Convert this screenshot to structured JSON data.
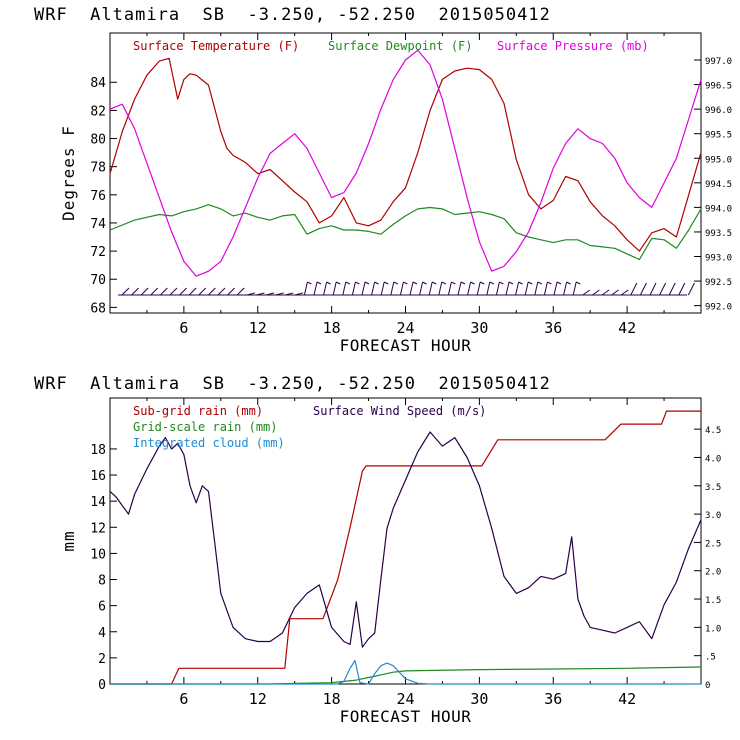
{
  "title_top": "WRF  Altamira  SB  -3.250, -52.250  2015050412",
  "title_bottom": "WRF  Altamira  SB  -3.250, -52.250  2015050412",
  "chart_data": [
    {
      "type": "line",
      "title": "WRF  Altamira  SB  -3.250, -52.250  2015050412",
      "xlabel": "FORECAST HOUR",
      "ylabel": "Degrees F",
      "xlim": [
        0,
        48
      ],
      "ylim": [
        67.6,
        87.5
      ],
      "xticks": [
        6,
        12,
        18,
        24,
        30,
        36,
        42
      ],
      "yticks": [
        68,
        70,
        72,
        74,
        76,
        78,
        80,
        82,
        84
      ],
      "y2label": "Surface Pressure (mb)",
      "y2lim": [
        991.85,
        997.55
      ],
      "y2ticks": [
        "992.0",
        "992.5",
        "993.0",
        "993.5",
        "994.0",
        "994.5",
        "995.0",
        "995.5",
        "996.0",
        "996.5",
        "997.0"
      ],
      "series": [
        {
          "name": "Surface Temperature (F)",
          "color": "#b00000",
          "axis": "left",
          "x": [
            0,
            1,
            2,
            3,
            4,
            4.8,
            5.5,
            6,
            6.5,
            7,
            8,
            9,
            9.5,
            10,
            11,
            12,
            13,
            14,
            15,
            16,
            17,
            18,
            19,
            20,
            21,
            22,
            23,
            24,
            25,
            26,
            27,
            28,
            29,
            30,
            31,
            32,
            33,
            34,
            35,
            36,
            37,
            38,
            39,
            40,
            41,
            42,
            43,
            44,
            45,
            46,
            47,
            48
          ],
          "y": [
            77.5,
            80.5,
            82.8,
            84.5,
            85.5,
            85.7,
            82.8,
            84.2,
            84.6,
            84.5,
            83.8,
            80.5,
            79.3,
            78.8,
            78.3,
            77.5,
            77.8,
            77.0,
            76.2,
            75.5,
            74.0,
            74.5,
            75.8,
            74.0,
            73.8,
            74.2,
            75.5,
            76.5,
            79.0,
            82.0,
            84.2,
            84.8,
            85.0,
            84.9,
            84.2,
            82.5,
            78.5,
            76.0,
            75.0,
            75.6,
            77.3,
            77.0,
            75.5,
            74.5,
            73.8,
            72.8,
            72.0,
            73.3,
            73.6,
            73.0,
            76.0,
            79.0
          ]
        },
        {
          "name": "Surface Dewpoint (F)",
          "color": "#1f8a1f",
          "axis": "left",
          "x": [
            0,
            2,
            4,
            5,
            6,
            7,
            8,
            9,
            10,
            11,
            12,
            13,
            14,
            15,
            16,
            17,
            18,
            19,
            20,
            21,
            22,
            23,
            24,
            25,
            26,
            27,
            28,
            29,
            30,
            31,
            32,
            33,
            34,
            35,
            36,
            37,
            38,
            39,
            40,
            41,
            42,
            43,
            44,
            45,
            46,
            47,
            48
          ],
          "y": [
            73.5,
            74.2,
            74.6,
            74.5,
            74.8,
            75.0,
            75.3,
            75.0,
            74.5,
            74.7,
            74.4,
            74.2,
            74.5,
            74.6,
            73.2,
            73.6,
            73.8,
            73.5,
            73.5,
            73.4,
            73.2,
            73.9,
            74.5,
            75.0,
            75.1,
            75.0,
            74.6,
            74.7,
            74.8,
            74.6,
            74.3,
            73.3,
            73.0,
            72.8,
            72.6,
            72.8,
            72.8,
            72.4,
            72.3,
            72.2,
            71.8,
            71.4,
            72.9,
            72.8,
            72.2,
            73.5,
            75.0
          ]
        },
        {
          "name": "Surface Pressure (mb)",
          "color": "#e000e0",
          "axis": "right",
          "x": [
            0,
            1,
            2,
            3,
            4,
            5,
            6,
            7,
            8,
            9,
            10,
            11,
            12,
            13,
            14,
            15,
            16,
            17,
            18,
            19,
            20,
            21,
            22,
            23,
            24,
            25,
            26,
            27,
            28,
            29,
            30,
            31,
            32,
            33,
            34,
            35,
            36,
            37,
            38,
            39,
            40,
            41,
            42,
            43,
            44,
            45,
            46,
            47,
            48
          ],
          "y": [
            996.0,
            996.1,
            995.6,
            994.9,
            994.2,
            993.5,
            992.9,
            992.6,
            992.7,
            992.9,
            993.4,
            994.0,
            994.6,
            995.1,
            995.3,
            995.5,
            995.2,
            994.7,
            994.2,
            994.3,
            994.7,
            995.3,
            996.0,
            996.6,
            997.0,
            997.2,
            996.9,
            996.2,
            995.2,
            994.2,
            993.3,
            992.7,
            992.8,
            993.1,
            993.5,
            994.1,
            994.8,
            995.3,
            995.6,
            995.4,
            995.3,
            995.0,
            994.5,
            994.2,
            994.0,
            994.5,
            995.0,
            995.8,
            996.6
          ]
        },
        {
          "name": "Wind barbs",
          "color": "#2a004a",
          "axis": "none",
          "x": [],
          "y": []
        }
      ],
      "legend": [
        "Surface Temperature (F)",
        "Surface Dewpoint (F)",
        "Surface Pressure (mb)"
      ]
    },
    {
      "type": "line",
      "title": "WRF  Altamira  SB  -3.250, -52.250  2015050412",
      "xlabel": "FORECAST HOUR",
      "ylabel": "mm",
      "xlim": [
        0,
        48
      ],
      "ylim": [
        0,
        21.9
      ],
      "xticks": [
        6,
        12,
        18,
        24,
        30,
        36,
        42
      ],
      "yticks": [
        0,
        2,
        4,
        6,
        8,
        10,
        12,
        14,
        16,
        18
      ],
      "y2label": "Surface Wind Speed (m/s)",
      "y2lim": [
        0,
        5.05
      ],
      "y2ticks": [
        "0",
        ".5",
        "1.0",
        "1.5",
        "2.0",
        "2.5",
        "3.0",
        "3.5",
        "4.0",
        "4.5"
      ],
      "series": [
        {
          "name": "Sub-grid rain (mm)",
          "color": "#b00000",
          "axis": "left",
          "x": [
            0,
            5,
            5.6,
            14.2,
            14.6,
            17.3,
            18.5,
            19.5,
            20.5,
            20.8,
            30.2,
            31.5,
            40.2,
            41.5,
            44.8,
            45.2,
            48
          ],
          "y": [
            0,
            0,
            1.2,
            1.2,
            5.0,
            5.0,
            8.0,
            12.0,
            16.3,
            16.7,
            16.7,
            18.7,
            18.7,
            19.9,
            19.9,
            20.9,
            20.9
          ]
        },
        {
          "name": "Grid-scale rain (mm)",
          "color": "#1f8a1f",
          "axis": "left",
          "x": [
            0,
            13,
            15,
            18,
            19,
            20,
            21,
            22,
            23,
            24,
            30,
            36,
            42,
            48
          ],
          "y": [
            0,
            0,
            0.05,
            0.1,
            0.2,
            0.3,
            0.5,
            0.7,
            0.9,
            1.0,
            1.1,
            1.15,
            1.2,
            1.3
          ]
        },
        {
          "name": "Integrated cloud (mm)",
          "color": "#1a8cd8",
          "axis": "left",
          "x": [
            0,
            18.5,
            19,
            19.5,
            19.9,
            20.3,
            21,
            21.5,
            22,
            22.5,
            23,
            23.5,
            24,
            25,
            26,
            27,
            48
          ],
          "y": [
            0,
            0,
            0.2,
            1.2,
            1.8,
            0.1,
            0,
            0.8,
            1.4,
            1.6,
            1.4,
            0.9,
            0.4,
            0.05,
            0,
            0,
            0
          ]
        },
        {
          "name": "Surface Wind Speed (m/s)",
          "color": "#2a004a",
          "axis": "right",
          "x": [
            0,
            0.5,
            1,
            1.5,
            2,
            3,
            4,
            4.5,
            5,
            5.5,
            6,
            6.5,
            7,
            7.5,
            8,
            8.5,
            9,
            10,
            11,
            12,
            13,
            14,
            15,
            16,
            17,
            18,
            19,
            19.5,
            20,
            20.5,
            21,
            21.5,
            22,
            22.5,
            23,
            24,
            25,
            26,
            27,
            28,
            29,
            30,
            31,
            32,
            33,
            34,
            35,
            36,
            37,
            37.5,
            38,
            38.5,
            39,
            40,
            41,
            42,
            43,
            44,
            45,
            46,
            47,
            48
          ],
          "y": [
            3.4,
            3.3,
            3.15,
            3.0,
            3.35,
            3.8,
            4.2,
            4.35,
            4.15,
            4.25,
            4.05,
            3.5,
            3.2,
            3.5,
            3.4,
            2.5,
            1.6,
            1.0,
            0.8,
            0.75,
            0.75,
            0.9,
            1.35,
            1.6,
            1.75,
            1.0,
            0.75,
            0.7,
            1.45,
            0.65,
            0.8,
            0.9,
            1.85,
            2.75,
            3.1,
            3.6,
            4.1,
            4.45,
            4.2,
            4.35,
            4.0,
            3.5,
            2.75,
            1.9,
            1.6,
            1.7,
            1.9,
            1.85,
            1.95,
            2.6,
            1.5,
            1.2,
            1.0,
            0.95,
            0.9,
            1.0,
            1.1,
            0.8,
            1.4,
            1.8,
            2.4,
            2.9
          ]
        }
      ],
      "legend": [
        "Sub-grid rain (mm)",
        "Surface Wind Speed (m/s)",
        "Grid-scale rain (mm)",
        "Integrated cloud (mm)"
      ]
    }
  ]
}
